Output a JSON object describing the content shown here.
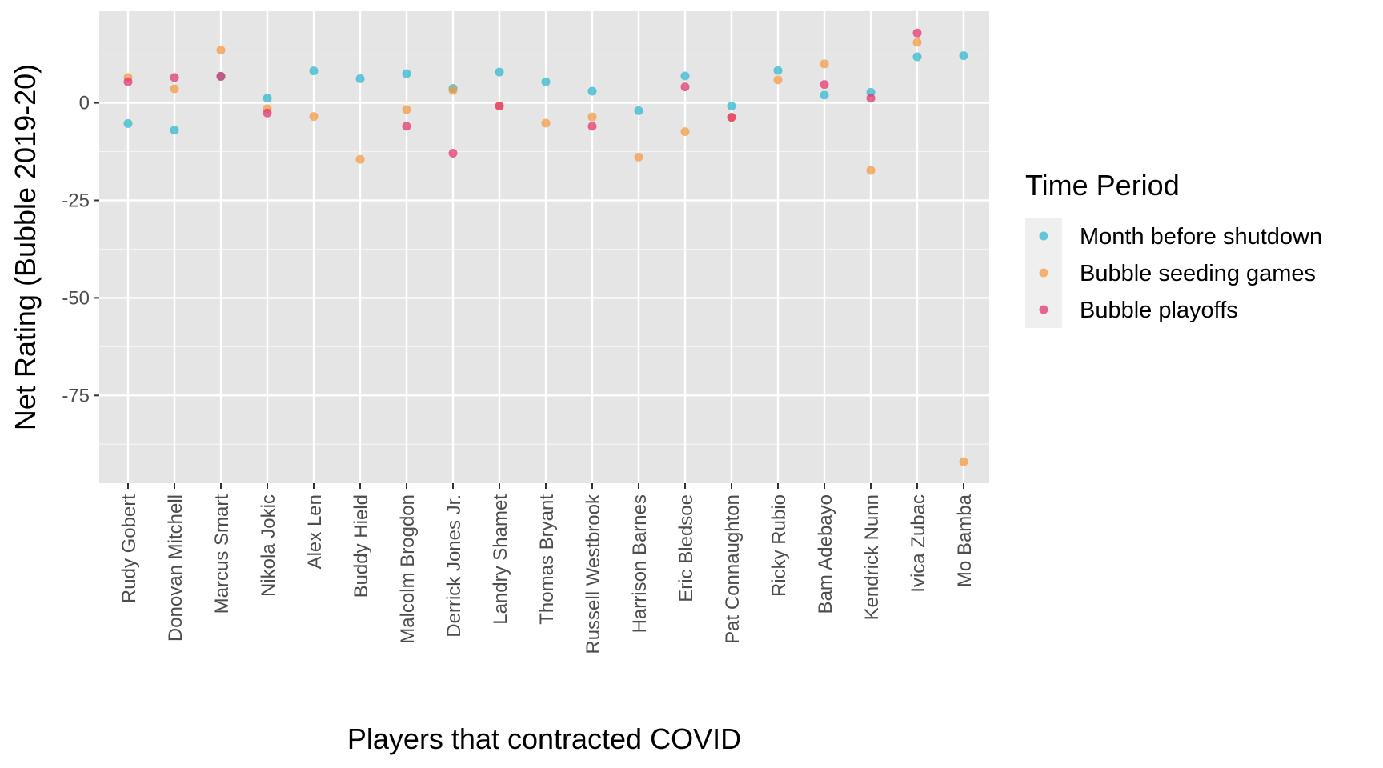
{
  "chart_data": {
    "type": "scatter",
    "xlabel": "Players that contracted COVID",
    "ylabel": "Net Rating (Bubble 2019-20)",
    "categories": [
      "Rudy Gobert",
      "Donovan Mitchell",
      "Marcus Smart",
      "Nikola Jokic",
      "Alex Len",
      "Buddy Hield",
      "Malcolm Brogdon",
      "Derrick Jones Jr.",
      "Landry Shamet",
      "Thomas Bryant",
      "Russell Westbrook",
      "Harrison Barnes",
      "Eric Bledsoe",
      "Pat Connaughton",
      "Ricky Rubio",
      "Bam Adebayo",
      "Kendrick Nunn",
      "Ivica Zubac",
      "Mo Bamba"
    ],
    "ylim": [
      -97.5,
      23.5
    ],
    "yticks": [
      0,
      -25,
      -50,
      -75
    ],
    "ytick_labels": [
      "0",
      "-25",
      "-50",
      "-75"
    ],
    "grid": true,
    "legend": {
      "title": "Time Period",
      "position": "right"
    },
    "series": [
      {
        "name": "Month before shutdown",
        "color": "#2ab7cf",
        "values": [
          -5.3,
          -7.0,
          6.8,
          1.2,
          8.2,
          6.2,
          7.5,
          3.7,
          7.9,
          5.4,
          3.0,
          -2.0,
          6.9,
          -0.8,
          8.3,
          2.0,
          2.7,
          11.8,
          12.1
        ]
      },
      {
        "name": "Bubble seeding games",
        "color": "#f5973d",
        "values": [
          6.5,
          3.6,
          13.5,
          -1.5,
          -3.5,
          -14.5,
          -1.7,
          3.2,
          -0.8,
          -5.2,
          -3.6,
          -13.9,
          -7.4,
          -3.7,
          5.9,
          10.0,
          -17.3,
          15.5,
          -92.0
        ]
      },
      {
        "name": "Bubble playoffs",
        "color": "#e0306a",
        "values": [
          5.4,
          6.5,
          6.8,
          -2.6,
          null,
          null,
          -6.0,
          -12.9,
          -0.8,
          null,
          -6.0,
          null,
          4.1,
          -3.7,
          null,
          4.7,
          1.2,
          17.9,
          null
        ]
      }
    ]
  }
}
